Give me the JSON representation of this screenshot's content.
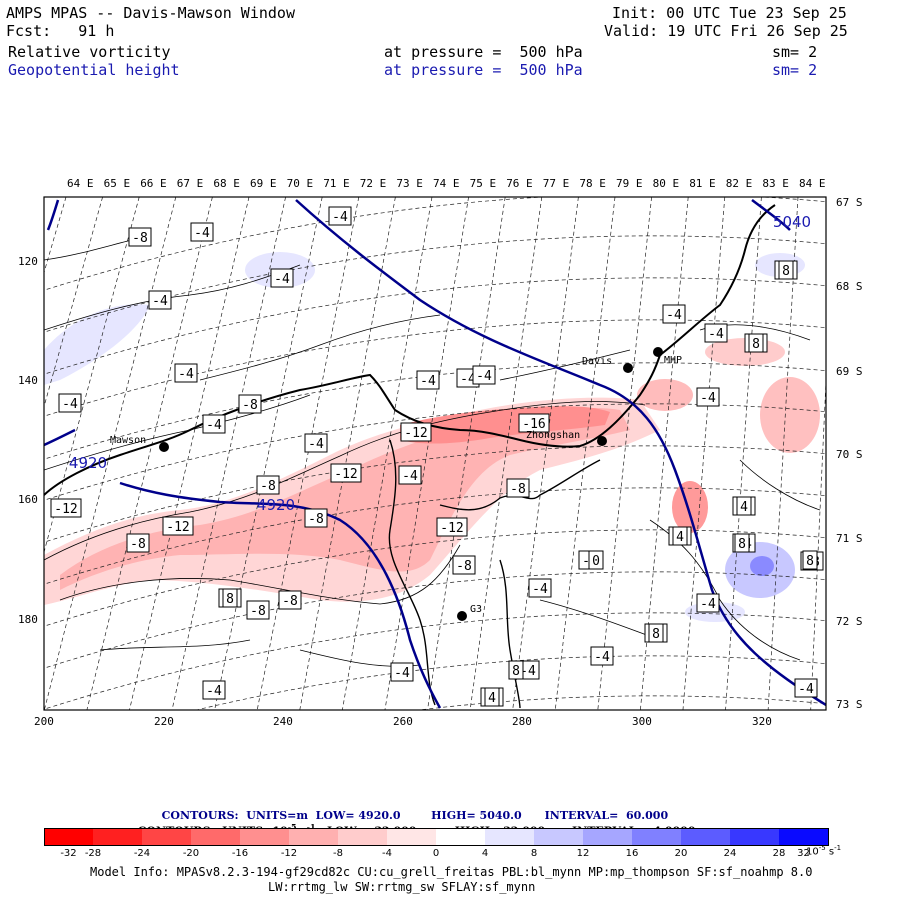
{
  "header": {
    "title": "AMPS MPAS -- Davis-Mawson Window",
    "init": "Init: 00 UTC Tue 23 Sep 25",
    "fcst": "Fcst:   91 h",
    "valid": "Valid: 19 UTC Fri 26 Sep 25",
    "field1_name": "Relative vorticity",
    "field1_level": "at pressure =  500 hPa",
    "field1_sm": "sm= 2",
    "field2_name": "Geopotential height",
    "field2_level": "at pressure =  500 hPa",
    "field2_sm": "sm= 2"
  },
  "lon_labels": [
    "64 E",
    "65 E",
    "66 E",
    "67 E",
    "68 E",
    "69 E",
    "70 E",
    "71 E",
    "72 E",
    "73 E",
    "74 E",
    "75 E",
    "76 E",
    "77 E",
    "78 E",
    "79 E",
    "80 E",
    "81 E",
    "82 E",
    "83 E",
    "84 E"
  ],
  "lat_labels": [
    "67 S",
    "68 S",
    "69 S",
    "70 S",
    "71 S",
    "72 S",
    "73 S"
  ],
  "x_ticks": [
    "200",
    "220",
    "240",
    "260",
    "280",
    "300",
    "320"
  ],
  "y_ticks": [
    "120",
    "140",
    "160",
    "180"
  ],
  "places": [
    {
      "name": "Mawson"
    },
    {
      "name": "Davis"
    },
    {
      "name": "MHP"
    },
    {
      "name": "Zhongshan"
    },
    {
      "name": "G3"
    }
  ],
  "height_labels": [
    "4920",
    "4920",
    "5040"
  ],
  "vort_labels": [
    "-4",
    "-4",
    "-8",
    "-8",
    "-4",
    "-8",
    "-4",
    "-4",
    "-4",
    "-4",
    "-4",
    "-4",
    "-12",
    "-16",
    "-12",
    "-4",
    "-8",
    "-12",
    "-8",
    "-12",
    "-8",
    "-12",
    "-8",
    "-4",
    "-4",
    "-4",
    "-4",
    "-4",
    "-8",
    "-4",
    "-4",
    "-4",
    "-4",
    "-8",
    "-4",
    "-4",
    "-4",
    "-4",
    "-4",
    "-4",
    "-4",
    "-4",
    "-8",
    "-8",
    "-4",
    "-4",
    "8",
    "8",
    "8",
    "8",
    "4",
    "8",
    "4",
    "8",
    "0",
    "-8",
    "-4",
    "-4",
    "-4",
    "4",
    "8"
  ],
  "contour_info_1": {
    "prefix": "CONTOURS:  UNITS=m  LOW=",
    "low": "4920.0",
    "high_label": "HIGH=",
    "high": "5040.0",
    "int_label": "INTERVAL=",
    "interval": "60.000"
  },
  "contour_info_2": {
    "prefix": "CONTOURS:  UNITS=10",
    "exp": "-5",
    "suffix": "s",
    "s_exp": "-1",
    "low_label": "LOW=",
    "low": "-32.000",
    "high_label": "HIGH=",
    "high": "32.000",
    "int_label": "INTERVAL=",
    "interval": "4.0000"
  },
  "colorbar": {
    "labels": [
      "-32",
      "-28",
      "-24",
      "-20",
      "-16",
      "-12",
      "-8",
      "-4",
      "0",
      "4",
      "8",
      "12",
      "16",
      "20",
      "24",
      "28",
      "32"
    ],
    "unit": "10",
    "unit_exp": "-5",
    "unit_s": "s",
    "unit_s_exp": "-1",
    "colors": [
      "#ff0000",
      "#ff2020",
      "#ff4545",
      "#ff6a6a",
      "#ff8f8f",
      "#ffb0b0",
      "#ffcccc",
      "#ffe6e6",
      "#ffffff",
      "#ffffff",
      "#e6e6ff",
      "#c8c8ff",
      "#a6a6ff",
      "#8080ff",
      "#5c5cff",
      "#3838ff",
      "#0a0aff"
    ]
  },
  "footer": {
    "line1": "Model Info: MPASv8.2.3-194-gf29cd82c CU:cu_grell_freitas PBL:bl_mynn MP:mp_thompson SF:sf_noahmp 8.0",
    "line2": "LW:rrtmg_lw SW:rrtmg_sw SFLAY:sf_mynn"
  }
}
